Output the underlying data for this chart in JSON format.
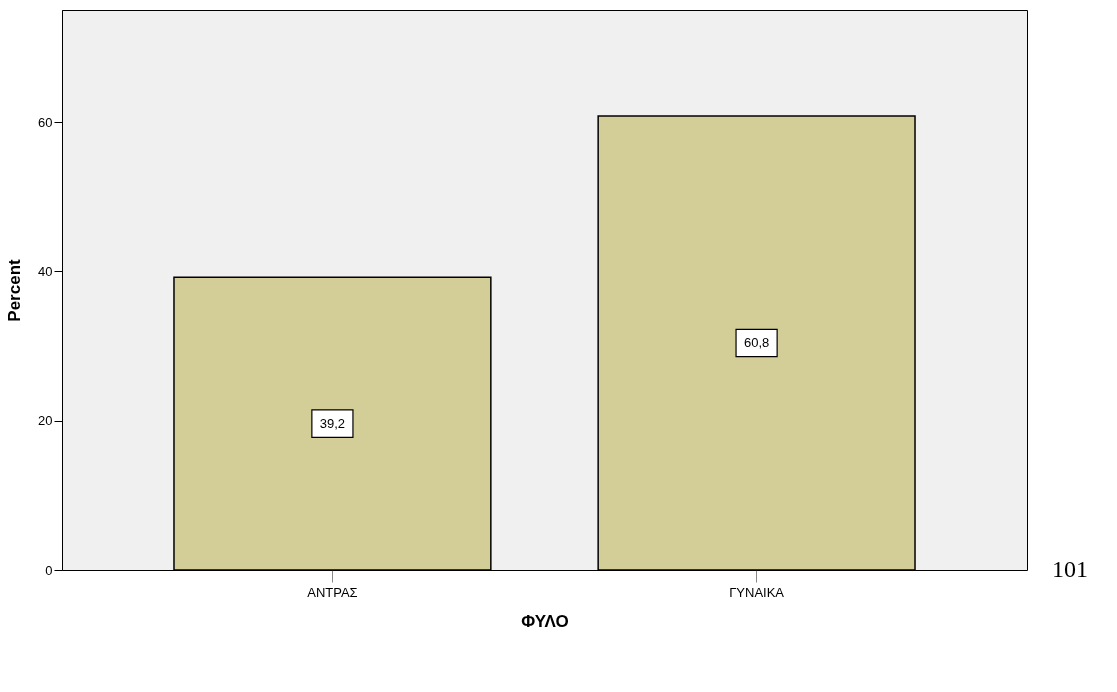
{
  "chart_data": {
    "type": "bar",
    "xlabel": "ΦΥΛΟ",
    "ylabel": "Percent",
    "categories": [
      "ΑΝΤΡΑΣ",
      "ΓΥΝΑΙΚΑ"
    ],
    "values": [
      39.2,
      60.8
    ],
    "color": "#d3ce97",
    "value_labels": [
      "39,2",
      "60,8"
    ],
    "ylim": [
      0,
      75
    ],
    "yticks": [
      0,
      20,
      40,
      60
    ],
    "grid": false,
    "annotations": [
      "101"
    ]
  }
}
